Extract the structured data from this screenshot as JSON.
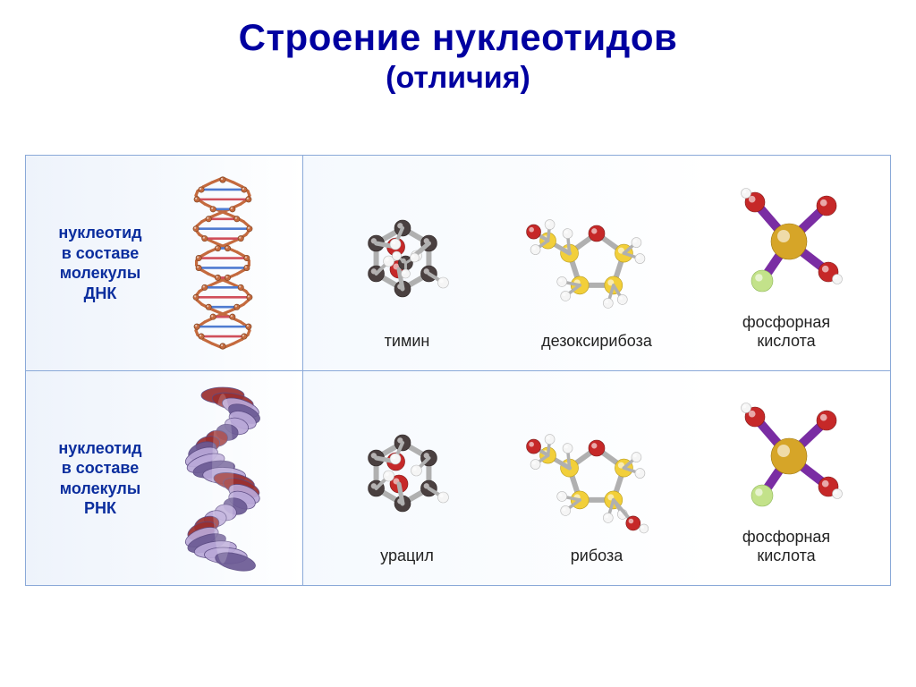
{
  "title": "Строение нуклеотидов",
  "subtitle": "(отличия)",
  "colors": {
    "title": "#0000a0",
    "border": "#8aa9d8",
    "label_text": "#0b2e9e",
    "mol_label": "#222222",
    "bg_cell_a": "#eef3fb",
    "bg_cell_b": "#ffffff",
    "atom_red": "#c62828",
    "atom_dark": "#4a4040",
    "atom_white": "#f5f5f5",
    "atom_yellow": "#f2cf3a",
    "atom_gold": "#d6a528",
    "atom_lime": "#c3e28a",
    "bond_grey": "#b0b0b0",
    "bond_purple": "#7a2da3",
    "helix_dna_strand": "#c46a3e",
    "helix_dna_base1": "#4f7bd0",
    "helix_dna_base2": "#d04f5b",
    "helix_rna_body": "#b9a8d8",
    "helix_rna_dark": "#6b5a94",
    "helix_rna_red": "#9a2f2f"
  },
  "rows": [
    {
      "label_lines": [
        "нуклеотид",
        "в составе",
        "молекулы ДНК"
      ],
      "helix": "dna",
      "molecules": [
        {
          "label": "тимин",
          "kind": "ring_base_thymine"
        },
        {
          "label": "дезоксирибоза",
          "kind": "sugar_deoxyribose"
        },
        {
          "label": "фосфорная",
          "label2": "кислота",
          "kind": "phosphate"
        }
      ]
    },
    {
      "label_lines": [
        "нуклеотид",
        "в составе",
        "молекулы РНК"
      ],
      "helix": "rna",
      "molecules": [
        {
          "label": "урацил",
          "kind": "ring_base_uracil"
        },
        {
          "label": "рибоза",
          "kind": "sugar_ribose"
        },
        {
          "label": "фосфорная",
          "label2": "кислота",
          "kind": "phosphate"
        }
      ]
    }
  ]
}
